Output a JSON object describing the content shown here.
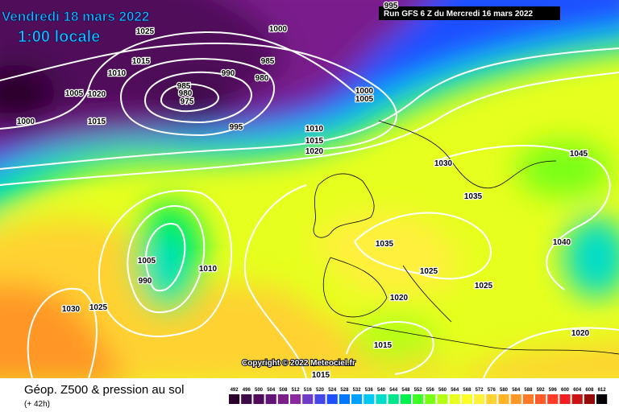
{
  "header": {
    "date": "Vendredi 18 mars 2022",
    "time": "1:00 locale",
    "run": "Run GFS 6 Z du Mercredi 16 mars 2022"
  },
  "copyright": "Copyright © 2022 Meteociel.fr",
  "footer": {
    "title": "Géop. Z500 & pression au sol",
    "lead": "(+ 42h)"
  },
  "legend": {
    "ticks": [
      492,
      496,
      500,
      504,
      508,
      512,
      516,
      520,
      524,
      528,
      532,
      536,
      540,
      544,
      548,
      552,
      556,
      560,
      564,
      568,
      572,
      576,
      580,
      584,
      588,
      592,
      596,
      600,
      604,
      608,
      612
    ],
    "colors": [
      "#2a002a",
      "#3c0a46",
      "#500a5a",
      "#641478",
      "#7a1e8c",
      "#8c28a0",
      "#6e3cc8",
      "#4646e6",
      "#1e50ff",
      "#0078ff",
      "#00a0ff",
      "#00c8f0",
      "#00dcc8",
      "#00e68c",
      "#00f050",
      "#3cff28",
      "#78ff14",
      "#b4ff14",
      "#e6ff1e",
      "#ffff28",
      "#fff03c",
      "#ffd232",
      "#ffb428",
      "#ff9628",
      "#ff7828",
      "#ff5a28",
      "#ff3c28",
      "#f01e1e",
      "#c81414",
      "#960a0a",
      "#000000"
    ]
  },
  "isobar_labels": [
    1025,
    1000,
    995,
    1015,
    1010,
    985,
    990,
    980,
    985,
    980,
    975,
    1005,
    1020,
    1015,
    1000,
    995,
    1000,
    1005,
    1010,
    1015,
    1020,
    1030,
    1035,
    1045,
    1035,
    1040,
    1005,
    1010,
    990,
    1025,
    1025,
    1020,
    1030,
    1025,
    1015,
    1020,
    1015
  ]
}
